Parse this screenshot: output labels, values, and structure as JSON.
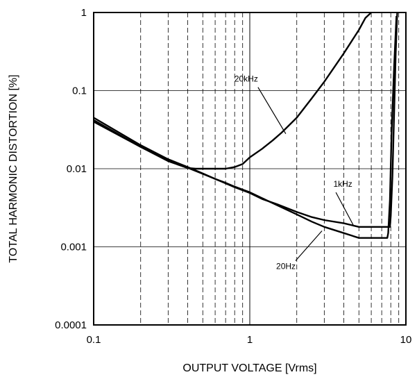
{
  "chart_data": {
    "type": "line",
    "title": "",
    "xlabel": "OUTPUT VOLTAGE [Vrms]",
    "ylabel": "TOTAL HARMONIC DISTORTION [%]",
    "xscale": "log",
    "yscale": "log",
    "xlim": [
      0.1,
      10
    ],
    "ylim": [
      0.0001,
      1
    ],
    "x_ticks": [
      0.1,
      1,
      10
    ],
    "x_tick_labels": [
      "0.1",
      "1",
      "10"
    ],
    "y_ticks": [
      0.0001,
      0.001,
      0.01,
      0.1,
      1
    ],
    "y_tick_labels": [
      "0.0001",
      "0.001",
      "0.01",
      "0.1",
      "1"
    ],
    "grid": "on (horizontal solid at decades, vertical dashed at minor ticks, vertical solid at decades)",
    "legend": "none (inline annotations)",
    "line_color": "#000000",
    "series": [
      {
        "name": "20kHz",
        "x": [
          0.1,
          0.2,
          0.3,
          0.4,
          0.45,
          0.5,
          0.6,
          0.7,
          0.8,
          0.9,
          1.0,
          1.2,
          1.4,
          1.6,
          2.0,
          2.5,
          3.0,
          4.0,
          5.0,
          5.5,
          6.0
        ],
        "y": [
          0.04,
          0.019,
          0.0125,
          0.0102,
          0.01,
          0.01,
          0.01,
          0.01,
          0.0105,
          0.0115,
          0.014,
          0.018,
          0.023,
          0.029,
          0.045,
          0.08,
          0.13,
          0.3,
          0.6,
          0.85,
          1.0
        ]
      },
      {
        "name": "1kHz",
        "x": [
          0.1,
          0.2,
          0.3,
          0.4,
          0.5,
          0.6,
          0.7,
          0.8,
          0.9,
          1.0,
          1.2,
          1.5,
          2.0,
          2.5,
          3.0,
          4.0,
          5.0,
          6.0,
          7.0,
          7.9,
          8.0,
          8.2,
          8.4,
          8.6,
          8.8
        ],
        "y": [
          0.045,
          0.02,
          0.0132,
          0.0105,
          0.0087,
          0.0074,
          0.0065,
          0.0058,
          0.0053,
          0.0049,
          0.0041,
          0.0035,
          0.0028,
          0.0024,
          0.0022,
          0.002,
          0.0018,
          0.0018,
          0.0018,
          0.0018,
          0.0025,
          0.008,
          0.05,
          0.3,
          1.0
        ]
      },
      {
        "name": "20Hz",
        "x": [
          0.1,
          0.2,
          0.3,
          0.4,
          0.5,
          0.6,
          0.7,
          0.8,
          0.9,
          1.0,
          1.2,
          1.5,
          2.0,
          2.5,
          3.0,
          4.0,
          5.0,
          6.0,
          7.0,
          7.6,
          7.7,
          7.9,
          8.1,
          8.4,
          8.7
        ],
        "y": [
          0.042,
          0.019,
          0.0128,
          0.0103,
          0.0086,
          0.0074,
          0.0066,
          0.0059,
          0.0054,
          0.005,
          0.0042,
          0.0034,
          0.0026,
          0.0021,
          0.0018,
          0.0015,
          0.0013,
          0.0013,
          0.0013,
          0.0013,
          0.0015,
          0.004,
          0.03,
          0.2,
          0.9
        ]
      }
    ],
    "annotations": [
      {
        "text": "20kHz",
        "series": "20kHz",
        "x": 1.7,
        "y": 0.028
      },
      {
        "text": "1kHz",
        "series": "1kHz",
        "x": 4.6,
        "y": 0.0019
      },
      {
        "text": "20Hz",
        "series": "20Hz",
        "x": 2.9,
        "y": 0.0016
      }
    ]
  }
}
